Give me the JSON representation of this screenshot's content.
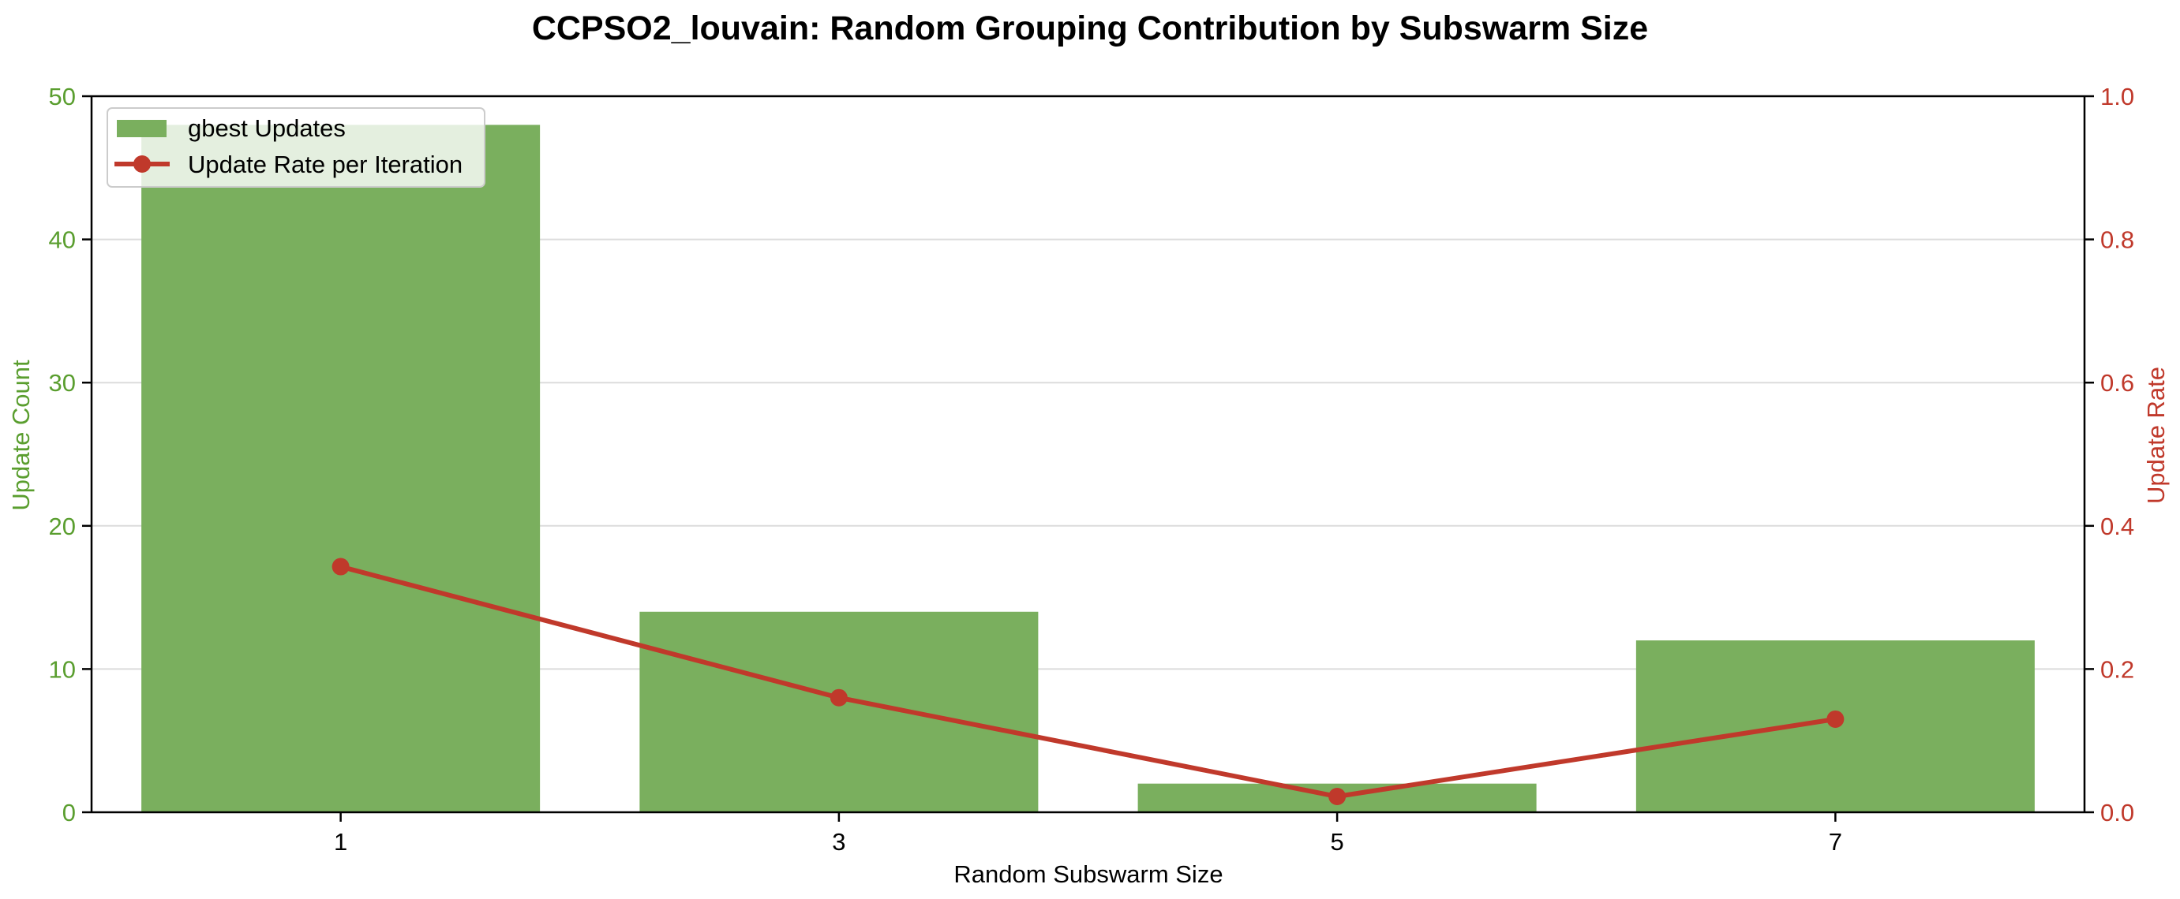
{
  "chart_data": {
    "type": "bar",
    "title": "CCPSO2_louvain: Random Grouping Contribution by Subswarm Size",
    "xlabel": "Random Subswarm Size",
    "ylabel_left": "Update Count",
    "ylabel_right": "Update Rate",
    "categories": [
      "1",
      "3",
      "5",
      "7"
    ],
    "series": [
      {
        "name": "gbest Updates",
        "type": "bar",
        "axis": "left",
        "color": "#7aaf5e",
        "values": [
          48,
          14,
          2,
          12
        ]
      },
      {
        "name": "Update Rate per Iteration",
        "type": "line",
        "axis": "right",
        "color": "#c0392b",
        "values": [
          0.343,
          0.16,
          0.022,
          0.13
        ]
      }
    ],
    "ylim_left": [
      0,
      50
    ],
    "yticks_left": [
      "0",
      "10",
      "20",
      "30",
      "40",
      "50"
    ],
    "ylim_right": [
      0,
      1.0
    ],
    "yticks_right": [
      "0.0",
      "0.2",
      "0.4",
      "0.6",
      "0.8",
      "1.0"
    ],
    "grid": "horizontal",
    "legend": "top-left",
    "left_axis_color": "#5a9e2f",
    "right_axis_color": "#c0392b"
  }
}
